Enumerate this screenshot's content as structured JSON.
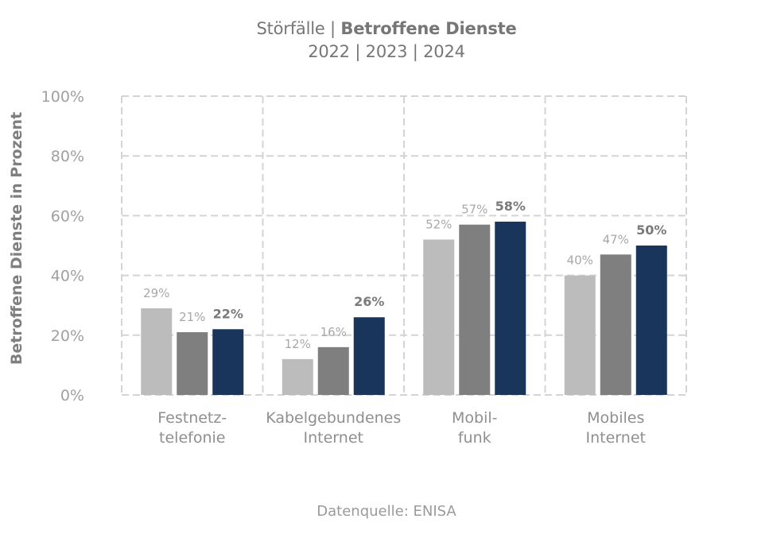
{
  "chart_data": {
    "type": "bar",
    "title": {
      "prefix": "Störfälle | ",
      "bold": "Betroffene Dienste"
    },
    "subtitle": "2022 | 2023 | 2024",
    "categories": [
      [
        "Festnetz-",
        "telefonie"
      ],
      [
        "Kabelgebundenes",
        "Internet"
      ],
      [
        "Mobil-",
        "funk"
      ],
      [
        "Mobiles",
        "Internet"
      ]
    ],
    "series": [
      {
        "name": "2022",
        "values": [
          29,
          12,
          52,
          40
        ],
        "labels": [
          "29%",
          "12%",
          "52%",
          "40%"
        ],
        "color": "#bcbcbc",
        "label_color": "#a8a8a8",
        "label_bold": false
      },
      {
        "name": "2023",
        "values": [
          21,
          16,
          57,
          47
        ],
        "labels": [
          "21%",
          "16%",
          "57%",
          "47%"
        ],
        "color": "#7f7f7f",
        "label_color": "#a8a8a8",
        "label_bold": false
      },
      {
        "name": "2024",
        "values": [
          22,
          26,
          58,
          50
        ],
        "labels": [
          "22%",
          "26%",
          "58%",
          "50%"
        ],
        "color": "#1a355b",
        "label_color": "#7a7a7a",
        "label_bold": true
      }
    ],
    "ylabel": "Betroffene Dienste in Prozent",
    "ylim": [
      0,
      100
    ],
    "yticks": [
      0,
      20,
      40,
      60,
      80,
      100
    ],
    "ytick_labels": [
      "0%",
      "20%",
      "40%",
      "60%",
      "80%",
      "100%"
    ],
    "grid": true,
    "legend": "none"
  },
  "footer": {
    "source": "Datenquelle: ENISA"
  }
}
